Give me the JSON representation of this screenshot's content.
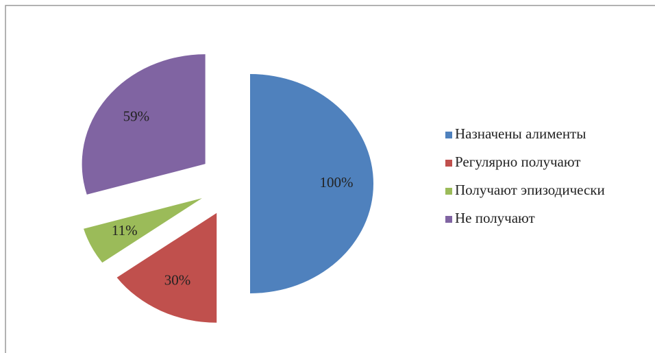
{
  "chart_data": {
    "type": "pie",
    "categories": [
      "Назначены алименты",
      "Регулярно получают",
      "Получают эпизодически",
      "Не получают"
    ],
    "values": [
      100,
      30,
      11,
      59
    ],
    "value_labels": [
      "100%",
      "30%",
      "11%",
      "59%"
    ],
    "colors": [
      "#4f81bd",
      "#c0504d",
      "#9bbb59",
      "#8064a2"
    ],
    "legend": "right"
  }
}
